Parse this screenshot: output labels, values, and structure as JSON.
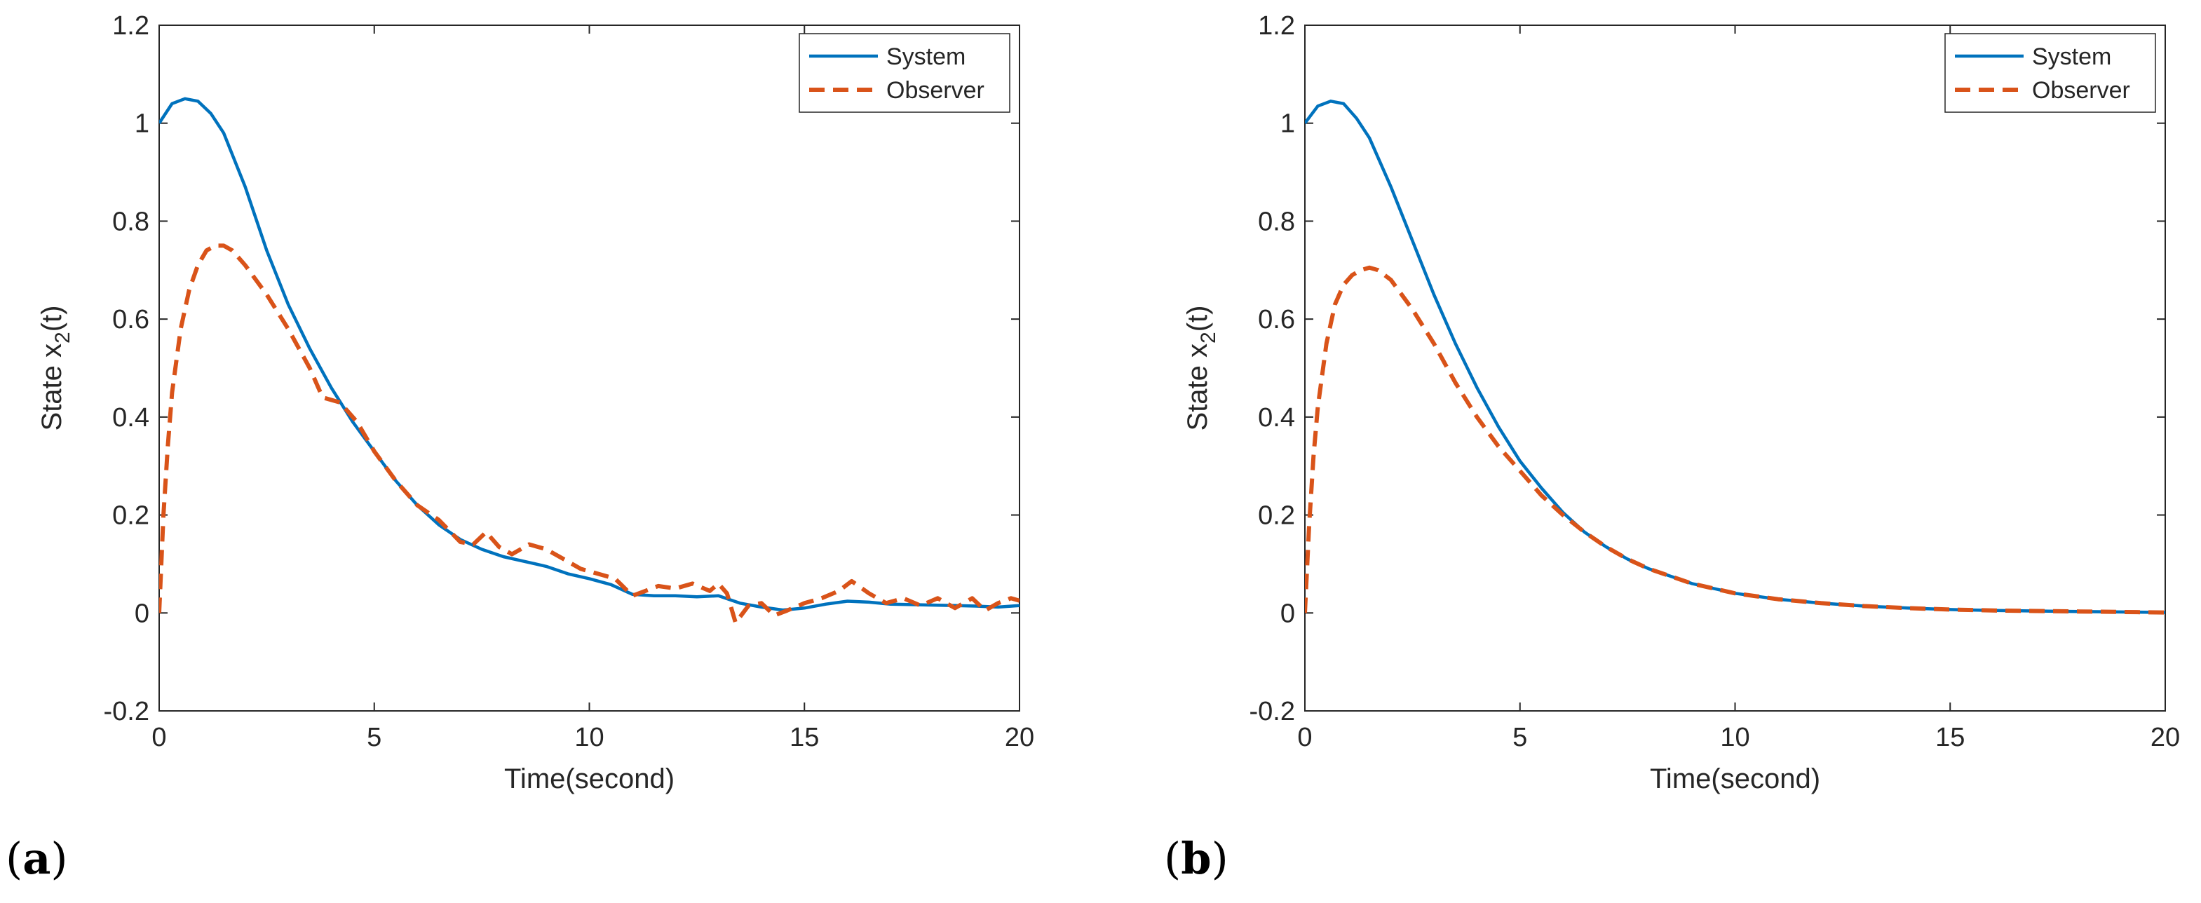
{
  "colors": {
    "system": "#0072BD",
    "observer": "#D95319",
    "axis": "#262626"
  },
  "chart_data": [
    {
      "id": "a",
      "panel_label": "a",
      "type": "line",
      "xlabel": "Time(second)",
      "ylabel": "State x",
      "ylabel_sub": "2",
      "ylabel_tail": "(t)",
      "xlim": [
        0,
        20
      ],
      "ylim": [
        -0.2,
        1.2
      ],
      "xticks": [
        0,
        5,
        10,
        15,
        20
      ],
      "yticks": [
        -0.2,
        0,
        0.2,
        0.4,
        0.6,
        0.8,
        1,
        1.2
      ],
      "xtick_labels": [
        "0",
        "5",
        "10",
        "15",
        "20"
      ],
      "ytick_labels": [
        "-0.2",
        "0",
        "0.2",
        "0.4",
        "0.6",
        "0.8",
        "1",
        "1.2"
      ],
      "grid": false,
      "legend": "top-right",
      "series": [
        {
          "name": "System",
          "style": "solid",
          "x": [
            0,
            0.3,
            0.6,
            0.9,
            1.2,
            1.5,
            2,
            2.5,
            3,
            3.5,
            4,
            4.5,
            5,
            5.5,
            6,
            6.5,
            7,
            7.5,
            8,
            8.5,
            9,
            9.5,
            10,
            10.5,
            11,
            11.5,
            12,
            12.5,
            13,
            13.5,
            14,
            14.5,
            15,
            15.5,
            16,
            16.5,
            17,
            17.5,
            18,
            18.5,
            19,
            19.5,
            20
          ],
          "y": [
            1.0,
            1.04,
            1.05,
            1.045,
            1.02,
            0.98,
            0.87,
            0.74,
            0.63,
            0.54,
            0.46,
            0.39,
            0.33,
            0.27,
            0.22,
            0.18,
            0.15,
            0.13,
            0.115,
            0.105,
            0.095,
            0.08,
            0.07,
            0.058,
            0.038,
            0.035,
            0.035,
            0.033,
            0.035,
            0.02,
            0.012,
            0.006,
            0.01,
            0.018,
            0.024,
            0.022,
            0.018,
            0.017,
            0.016,
            0.015,
            0.014,
            0.012,
            0.015
          ]
        },
        {
          "name": "Observer",
          "style": "dashed",
          "x": [
            0,
            0.1,
            0.2,
            0.3,
            0.5,
            0.7,
            0.9,
            1.1,
            1.3,
            1.5,
            1.7,
            2,
            2.5,
            3,
            3.5,
            3.8,
            4.2,
            4.6,
            5,
            5.5,
            6,
            6.5,
            7,
            7.3,
            7.6,
            7.9,
            8.2,
            8.6,
            9,
            9.4,
            9.8,
            10.2,
            10.6,
            11,
            11.3,
            11.6,
            12,
            12.4,
            12.8,
            13,
            13.2,
            13.4,
            13.7,
            14,
            14.3,
            14.6,
            15,
            15.4,
            15.8,
            16.1,
            16.5,
            16.9,
            17.3,
            17.7,
            18.1,
            18.5,
            18.9,
            19.2,
            19.5,
            19.8,
            20
          ],
          "y": [
            0.0,
            0.2,
            0.34,
            0.45,
            0.58,
            0.66,
            0.71,
            0.74,
            0.75,
            0.75,
            0.74,
            0.71,
            0.65,
            0.58,
            0.5,
            0.44,
            0.43,
            0.39,
            0.33,
            0.27,
            0.22,
            0.19,
            0.145,
            0.14,
            0.165,
            0.135,
            0.12,
            0.14,
            0.13,
            0.11,
            0.09,
            0.08,
            0.07,
            0.035,
            0.045,
            0.055,
            0.05,
            0.06,
            0.045,
            0.06,
            0.04,
            -0.02,
            0.015,
            0.02,
            -0.005,
            0.005,
            0.02,
            0.03,
            0.045,
            0.065,
            0.04,
            0.02,
            0.03,
            0.015,
            0.03,
            0.01,
            0.03,
            0.005,
            0.02,
            0.03,
            0.025
          ]
        }
      ]
    },
    {
      "id": "b",
      "panel_label": "b",
      "type": "line",
      "xlabel": "Time(second)",
      "ylabel": "State x",
      "ylabel_sub": "2",
      "ylabel_tail": "(t)",
      "xlim": [
        0,
        20
      ],
      "ylim": [
        -0.2,
        1.2
      ],
      "xticks": [
        0,
        5,
        10,
        15,
        20
      ],
      "yticks": [
        -0.2,
        0,
        0.2,
        0.4,
        0.6,
        0.8,
        1,
        1.2
      ],
      "xtick_labels": [
        "0",
        "5",
        "10",
        "15",
        "20"
      ],
      "ytick_labels": [
        "-0.2",
        "0",
        "0.2",
        "0.4",
        "0.6",
        "0.8",
        "1",
        "1.2"
      ],
      "grid": false,
      "legend": "top-right",
      "series": [
        {
          "name": "System",
          "style": "solid",
          "x": [
            0,
            0.3,
            0.6,
            0.9,
            1.2,
            1.5,
            2,
            2.5,
            3,
            3.5,
            4,
            4.5,
            5,
            5.5,
            6,
            6.5,
            7,
            7.5,
            8,
            9,
            10,
            11,
            12,
            13,
            14,
            15,
            16,
            17,
            18,
            19,
            20
          ],
          "y": [
            1.0,
            1.035,
            1.045,
            1.04,
            1.01,
            0.97,
            0.87,
            0.76,
            0.65,
            0.55,
            0.46,
            0.38,
            0.31,
            0.255,
            0.205,
            0.165,
            0.135,
            0.11,
            0.09,
            0.06,
            0.04,
            0.028,
            0.02,
            0.014,
            0.01,
            0.007,
            0.005,
            0.004,
            0.003,
            0.002,
            0.001
          ]
        },
        {
          "name": "Observer",
          "style": "dashed",
          "x": [
            0,
            0.1,
            0.2,
            0.3,
            0.5,
            0.7,
            0.9,
            1.1,
            1.3,
            1.5,
            1.7,
            2,
            2.5,
            3,
            3.5,
            4,
            4.5,
            5,
            5.5,
            6,
            6.5,
            7,
            7.5,
            8,
            9,
            10,
            11,
            12,
            13,
            14,
            15,
            16,
            17,
            18,
            19,
            20
          ],
          "y": [
            0.0,
            0.18,
            0.32,
            0.42,
            0.55,
            0.63,
            0.67,
            0.69,
            0.7,
            0.705,
            0.7,
            0.68,
            0.62,
            0.55,
            0.47,
            0.4,
            0.34,
            0.29,
            0.24,
            0.2,
            0.165,
            0.135,
            0.11,
            0.09,
            0.06,
            0.04,
            0.028,
            0.02,
            0.014,
            0.01,
            0.007,
            0.005,
            0.004,
            0.003,
            0.002,
            0.001
          ]
        }
      ]
    }
  ]
}
